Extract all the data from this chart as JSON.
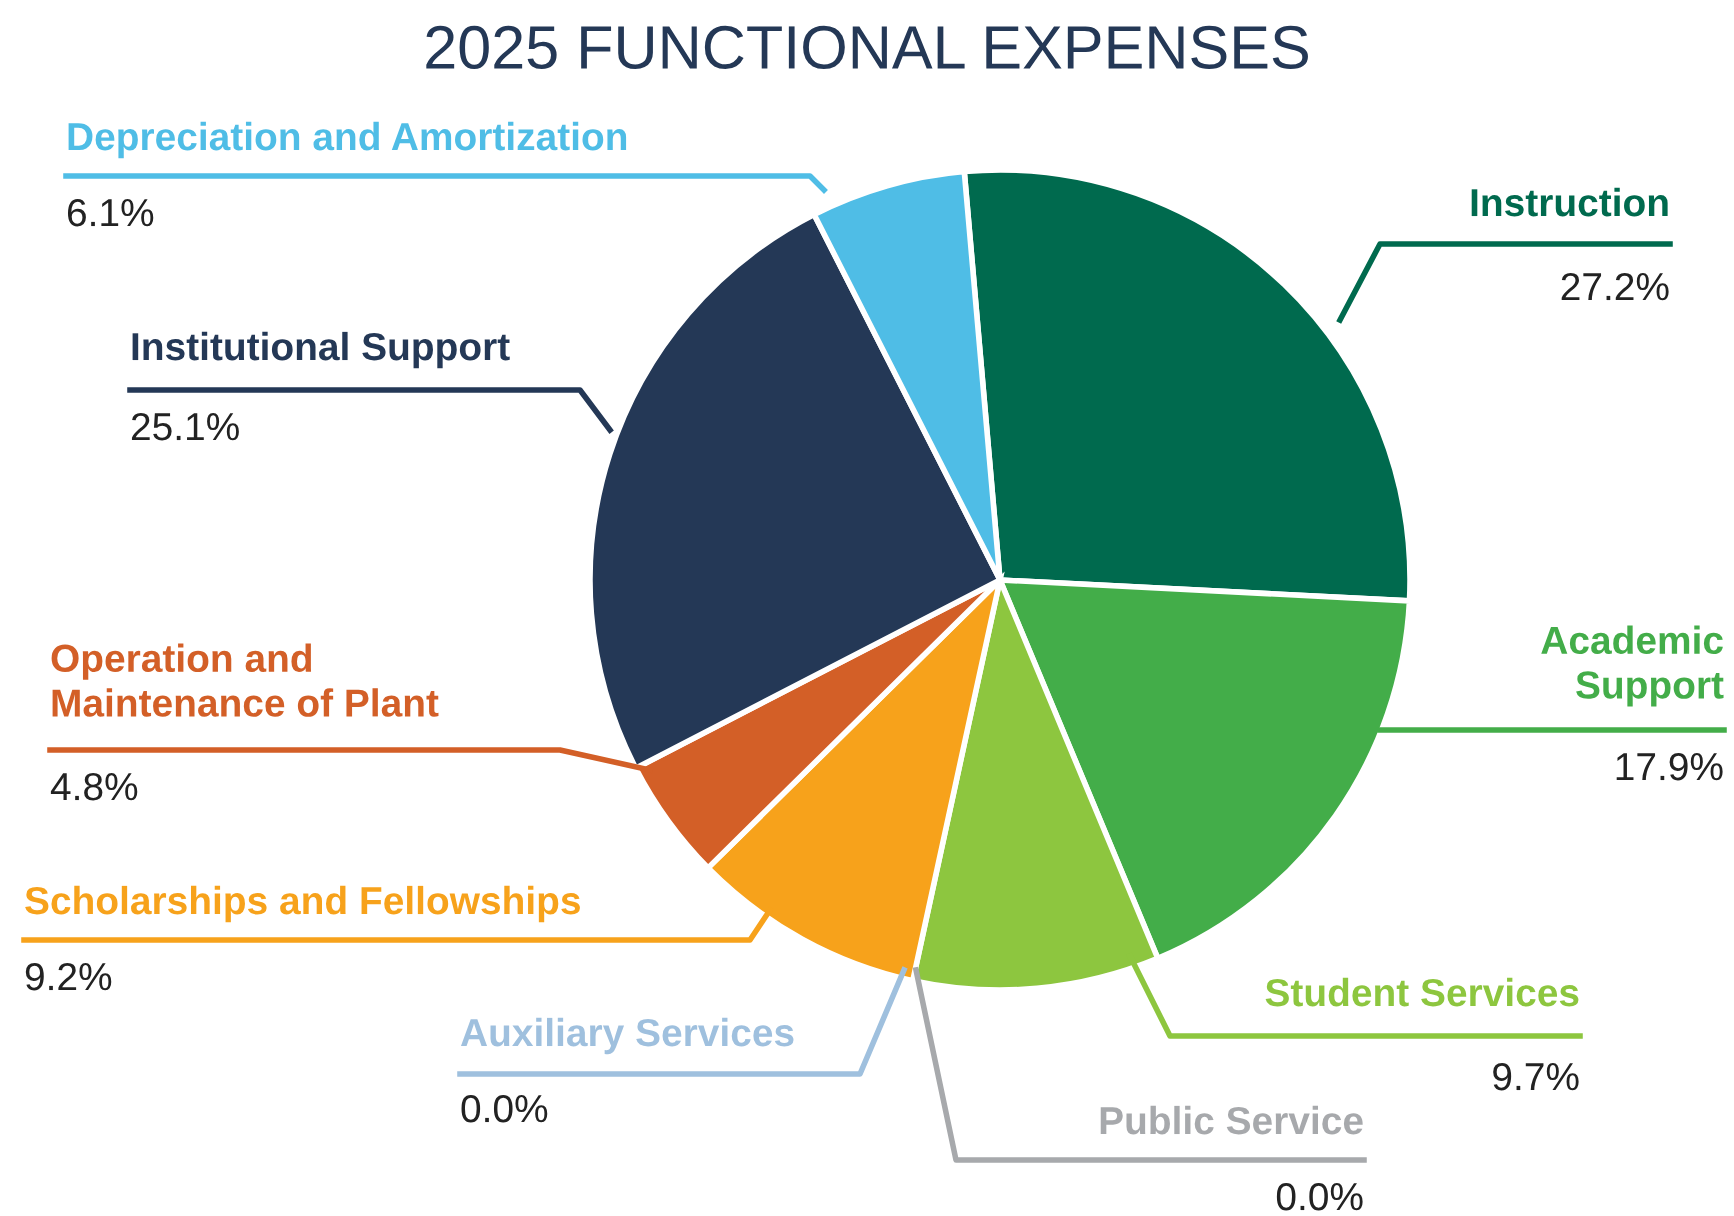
{
  "chart_data": {
    "type": "pie",
    "title": "2025 FUNCTIONAL EXPENSES",
    "categories": [
      "Instruction",
      "Academic\nSupport",
      "Student Services",
      "Public Service",
      "Auxiliary Services",
      "Scholarships and Fellowships",
      "Operation and\nMaintenance of Plant",
      "Institutional Support",
      "Depreciation and Amortization"
    ],
    "values": [
      27.2,
      17.9,
      9.7,
      0.0,
      0.0,
      9.2,
      4.8,
      25.1,
      6.1
    ],
    "value_labels": [
      "27.2%",
      "17.9%",
      "9.7%",
      "0.0%",
      "0.0%",
      "9.2%",
      "4.8%",
      "25.1%",
      "6.1%"
    ],
    "colors": [
      "#006a4e",
      "#43ad49",
      "#8dc63f",
      "#a7a9ac",
      "#9fc0de",
      "#f7a21b",
      "#d35f27",
      "#243856",
      "#4fbde6"
    ],
    "legend": false
  }
}
